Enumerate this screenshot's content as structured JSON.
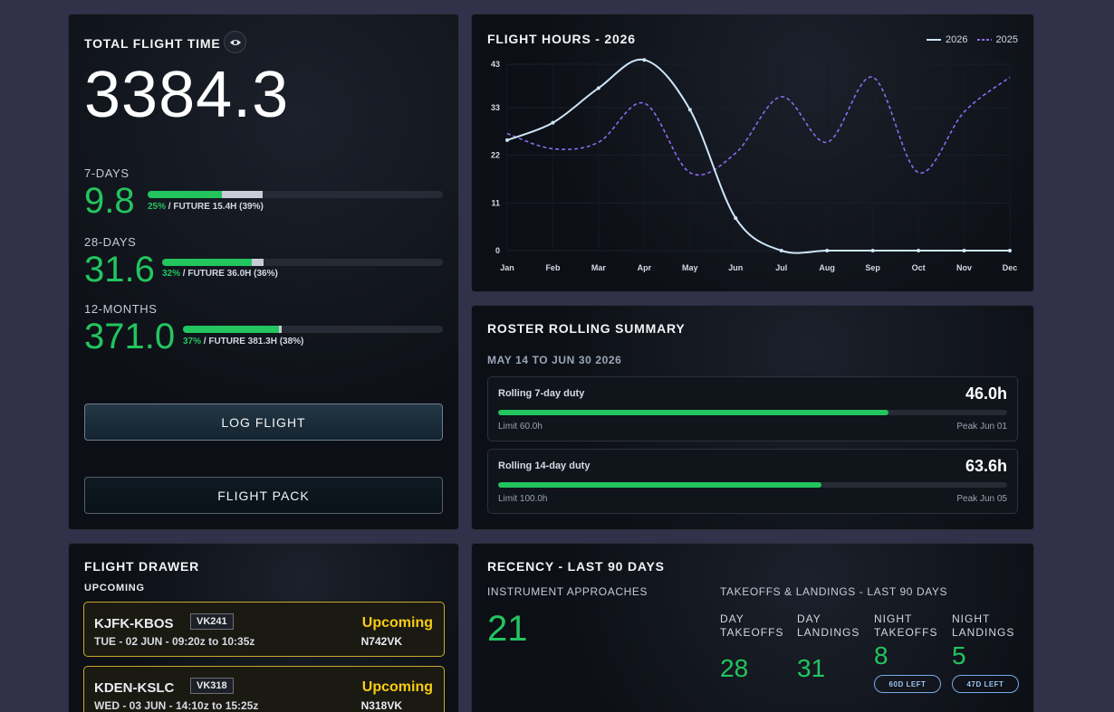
{
  "total": {
    "title": "TOTAL FLIGHT TIME",
    "value": "3384.3",
    "periods": [
      {
        "label": "7-DAYS",
        "value": "9.8",
        "past_pct": "25%",
        "caption": " / FUTURE 15.4H (39%)",
        "past_fraction": 0.25,
        "future_fraction": 0.39
      },
      {
        "label": "28-DAYS",
        "value": "31.6",
        "past_pct": "32%",
        "caption": " / FUTURE 36.0H (36%)",
        "past_fraction": 0.32,
        "future_fraction": 0.36
      },
      {
        "label": "12-MONTHS",
        "value": "371.0",
        "past_pct": "37%",
        "caption": " / FUTURE 381.3H (38%)",
        "past_fraction": 0.37,
        "future_fraction": 0.38
      }
    ],
    "log_flight_label": "LOG FLIGHT",
    "flight_pack_label": "FLIGHT PACK"
  },
  "chart": {
    "title": "FLIGHT HOURS - 2026",
    "legend": [
      "2026",
      "2025"
    ]
  },
  "chart_data": {
    "type": "line",
    "title": "FLIGHT HOURS - 2026",
    "categories": [
      "Jan",
      "Feb",
      "Mar",
      "Apr",
      "May",
      "Jun",
      "Jul",
      "Aug",
      "Sep",
      "Oct",
      "Nov",
      "Dec"
    ],
    "yticks": [
      0,
      11,
      22,
      33,
      43
    ],
    "ylim": [
      0,
      43
    ],
    "grid": true,
    "legend_position": "top-right",
    "series": [
      {
        "name": "2026",
        "values": [
          25.5,
          29.5,
          37.5,
          44.0,
          32.5,
          7.5,
          0,
          0,
          0,
          0,
          0,
          0
        ],
        "color": "#cfe6fa",
        "style": "solid"
      },
      {
        "name": "2025",
        "values": [
          27,
          23.5,
          25,
          34,
          18,
          22.5,
          35.5,
          25,
          40,
          18,
          32,
          40
        ],
        "color": "#8b6cf0",
        "style": "dashed"
      }
    ]
  },
  "roster": {
    "title": "ROSTER ROLLING SUMMARY",
    "range": "MAY 14 TO JUN 30 2026",
    "items": [
      {
        "label": "Rolling 7-day duty",
        "value": "46.0h",
        "limit": "Limit 60.0h",
        "peak": "Peak Jun 01",
        "fraction": 0.767
      },
      {
        "label": "Rolling 14-day duty",
        "value": "63.6h",
        "limit": "Limit 100.0h",
        "peak": "Peak Jun 05",
        "fraction": 0.636
      }
    ]
  },
  "drawer": {
    "title": "FLIGHT DRAWER",
    "subtitle": "UPCOMING",
    "flights": [
      {
        "route": "KJFK-KBOS",
        "tag": "VK241",
        "schedule": "TUE - 02 JUN - 09:20z to 10:35z",
        "status": "Upcoming",
        "tail": "N742VK"
      },
      {
        "route": "KDEN-KSLC",
        "tag": "VK318",
        "schedule": "WED - 03 JUN - 14:10z to 15:25z",
        "status": "Upcoming",
        "tail": "N318VK"
      }
    ]
  },
  "recency": {
    "title": "RECENCY - LAST 90 DAYS",
    "approaches_label": "INSTRUMENT APPROACHES",
    "approaches_value": "21",
    "tl_label": "TAKEOFFS & LANDINGS - LAST 90 DAYS",
    "cols": [
      {
        "line1": "DAY",
        "line2": "TAKEOFFS",
        "value": "28"
      },
      {
        "line1": "DAY",
        "line2": "LANDINGS",
        "value": "31"
      },
      {
        "line1": "NIGHT",
        "line2": "TAKEOFFS",
        "value": "8",
        "pill": "60D LEFT"
      },
      {
        "line1": "NIGHT",
        "line2": "LANDINGS",
        "value": "5",
        "pill": "47D LEFT"
      }
    ]
  },
  "colors": {
    "accent_green": "#22c55e",
    "upcoming_yellow": "#facc15",
    "series_2026": "#cfe6fa",
    "series_2025": "#8b6cf0"
  }
}
